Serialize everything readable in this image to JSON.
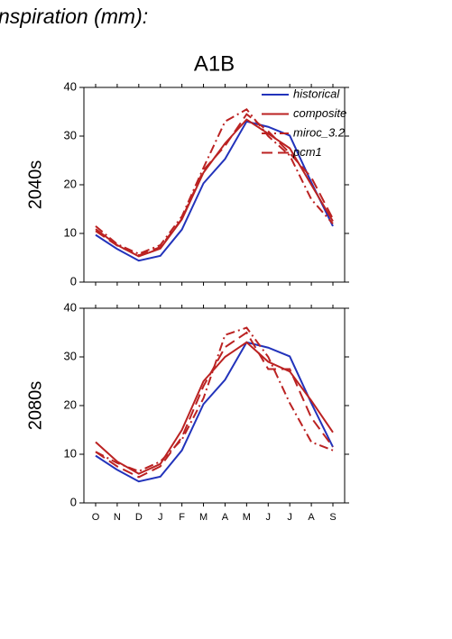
{
  "header": {
    "title": "nspiration (mm):"
  },
  "chart_data": [
    {
      "type": "line",
      "title": "A1B",
      "ylabel": "2040s",
      "ylim": [
        0,
        40
      ],
      "yticks": [
        0,
        10,
        20,
        30,
        40
      ],
      "legend": "upper right",
      "series": [
        {
          "name": "historical",
          "color": "#2233bb",
          "dash": "solid",
          "values": [
            9.7,
            6.8,
            4.4,
            5.4,
            10.8,
            20.3,
            25.3,
            33.0,
            31.9,
            30.1,
            20.5,
            11.5
          ]
        },
        {
          "name": "composite",
          "color": "#bb2222",
          "dash": "solid",
          "values": [
            10.9,
            7.6,
            5.3,
            6.9,
            12.9,
            22.5,
            28.5,
            33.4,
            30.5,
            27.5,
            20.0,
            12.5
          ]
        },
        {
          "name": "miroc_3.2",
          "color": "#bb2222",
          "dash": "dashdot",
          "values": [
            11.5,
            7.8,
            5.8,
            7.6,
            13.5,
            23.5,
            33.0,
            35.5,
            30.0,
            26.0,
            17.0,
            12.0
          ]
        },
        {
          "name": "pcm1",
          "color": "#bb2222",
          "dash": "dash",
          "values": [
            10.5,
            7.5,
            5.5,
            7.2,
            13.0,
            23.0,
            28.0,
            34.5,
            31.0,
            26.5,
            21.5,
            13.0
          ]
        }
      ]
    },
    {
      "type": "line",
      "ylabel": "2080s",
      "ylim": [
        0,
        40
      ],
      "yticks": [
        0,
        10,
        20,
        30,
        40
      ],
      "categories": [
        "O",
        "N",
        "D",
        "J",
        "F",
        "M",
        "A",
        "M",
        "J",
        "J",
        "A",
        "S"
      ],
      "series": [
        {
          "color": "#2233bb",
          "dash": "solid",
          "values": [
            9.7,
            6.8,
            4.4,
            5.4,
            10.8,
            20.3,
            25.3,
            33.0,
            31.9,
            30.1,
            20.5,
            11.5
          ]
        },
        {
          "color": "#bb2222",
          "dash": "solid",
          "values": [
            12.5,
            8.5,
            6.0,
            8.0,
            15.0,
            25.0,
            30.0,
            33.0,
            29.0,
            27.0,
            21.0,
            14.5
          ]
        },
        {
          "color": "#bb2222",
          "dash": "dashdot",
          "values": [
            10.5,
            8.2,
            6.5,
            8.5,
            13.0,
            21.5,
            34.5,
            36.0,
            30.0,
            20.5,
            12.5,
            10.8
          ]
        },
        {
          "color": "#bb2222",
          "dash": "dash",
          "values": [
            10.5,
            7.5,
            5.3,
            7.5,
            13.5,
            24.0,
            32.0,
            35.0,
            27.5,
            27.5,
            17.5,
            11.5
          ]
        }
      ]
    }
  ]
}
